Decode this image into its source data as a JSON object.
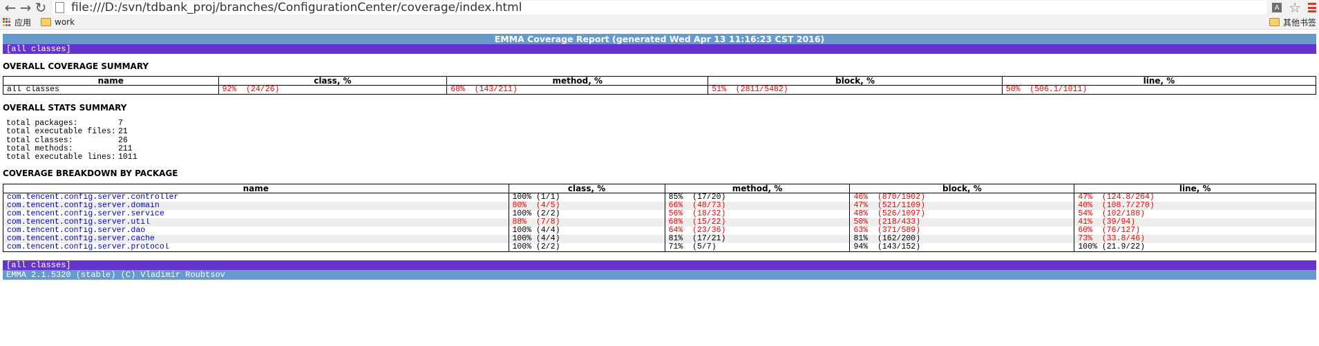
{
  "browser": {
    "url": "file:///D:/svn/tdbank_proj/branches/ConfigurationCenter/coverage/index.html",
    "bookmarks": [
      {
        "label": "应用",
        "icon": "apps-icon"
      },
      {
        "label": "work",
        "icon": "folder-icon"
      }
    ],
    "other_bookmarks": "其他书签"
  },
  "report": {
    "title": "EMMA Coverage Report (generated Wed Apr 13 11:16:23 CST 2016)",
    "all_classes_top": "[all classes]",
    "overall_coverage_heading": "OVERALL COVERAGE SUMMARY",
    "overall_stats_heading": "OVERALL STATS SUMMARY",
    "breakdown_heading": "COVERAGE BREAKDOWN BY PACKAGE",
    "all_classes_bottom": "[all classes]",
    "footer": "EMMA 2.1.5320 (stable) (C) Vladimir Roubtsov",
    "columns": [
      "name",
      "class, %",
      "method, %",
      "block, %",
      "line, %"
    ],
    "overall": {
      "name": "all classes",
      "class": "92%  (24/26)",
      "method": "68%  (143/211)",
      "block": "51%  (2811/5482)",
      "line": "50%  (506.1/1011)"
    },
    "stats": [
      {
        "label": "total packages:",
        "value": "7"
      },
      {
        "label": "total executable files:",
        "value": "21"
      },
      {
        "label": "total classes:",
        "value": "26"
      },
      {
        "label": "total methods:",
        "value": "211"
      },
      {
        "label": "total executable lines:",
        "value": "1011"
      }
    ],
    "packages": [
      {
        "name": "com.tencent.config.server.controller",
        "class": "100% (1/1)",
        "method": "85%  (17/20)",
        "block": "46%  (870/1902)",
        "line": "47%  (124.8/264)",
        "red": [
          false,
          false,
          true,
          true
        ]
      },
      {
        "name": "com.tencent.config.server.domain",
        "class": "80%  (4/5)",
        "method": "66%  (48/73)",
        "block": "47%  (521/1109)",
        "line": "40%  (108.7/270)",
        "red": [
          true,
          true,
          true,
          true
        ]
      },
      {
        "name": "com.tencent.config.server.service",
        "class": "100% (2/2)",
        "method": "56%  (18/32)",
        "block": "48%  (526/1097)",
        "line": "54%  (102/188)",
        "red": [
          false,
          true,
          true,
          true
        ]
      },
      {
        "name": "com.tencent.config.server.util",
        "class": "88%  (7/8)",
        "method": "68%  (15/22)",
        "block": "50%  (218/433)",
        "line": "41%  (39/94)",
        "red": [
          true,
          true,
          true,
          true
        ]
      },
      {
        "name": "com.tencent.config.server.dao",
        "class": "100% (4/4)",
        "method": "64%  (23/36)",
        "block": "63%  (371/589)",
        "line": "60%  (76/127)",
        "red": [
          false,
          true,
          true,
          true
        ]
      },
      {
        "name": "com.tencent.config.server.cache",
        "class": "100% (4/4)",
        "method": "81%  (17/21)",
        "block": "81%  (162/200)",
        "line": "73%  (33.8/46)",
        "red": [
          false,
          false,
          false,
          true
        ]
      },
      {
        "name": "com.tencent.config.server.protocol",
        "class": "100% (2/2)",
        "method": "71%  (5/7)",
        "block": "94%  (143/152)",
        "line": "100% (21.9/22)",
        "red": [
          false,
          false,
          false,
          false
        ]
      }
    ]
  }
}
